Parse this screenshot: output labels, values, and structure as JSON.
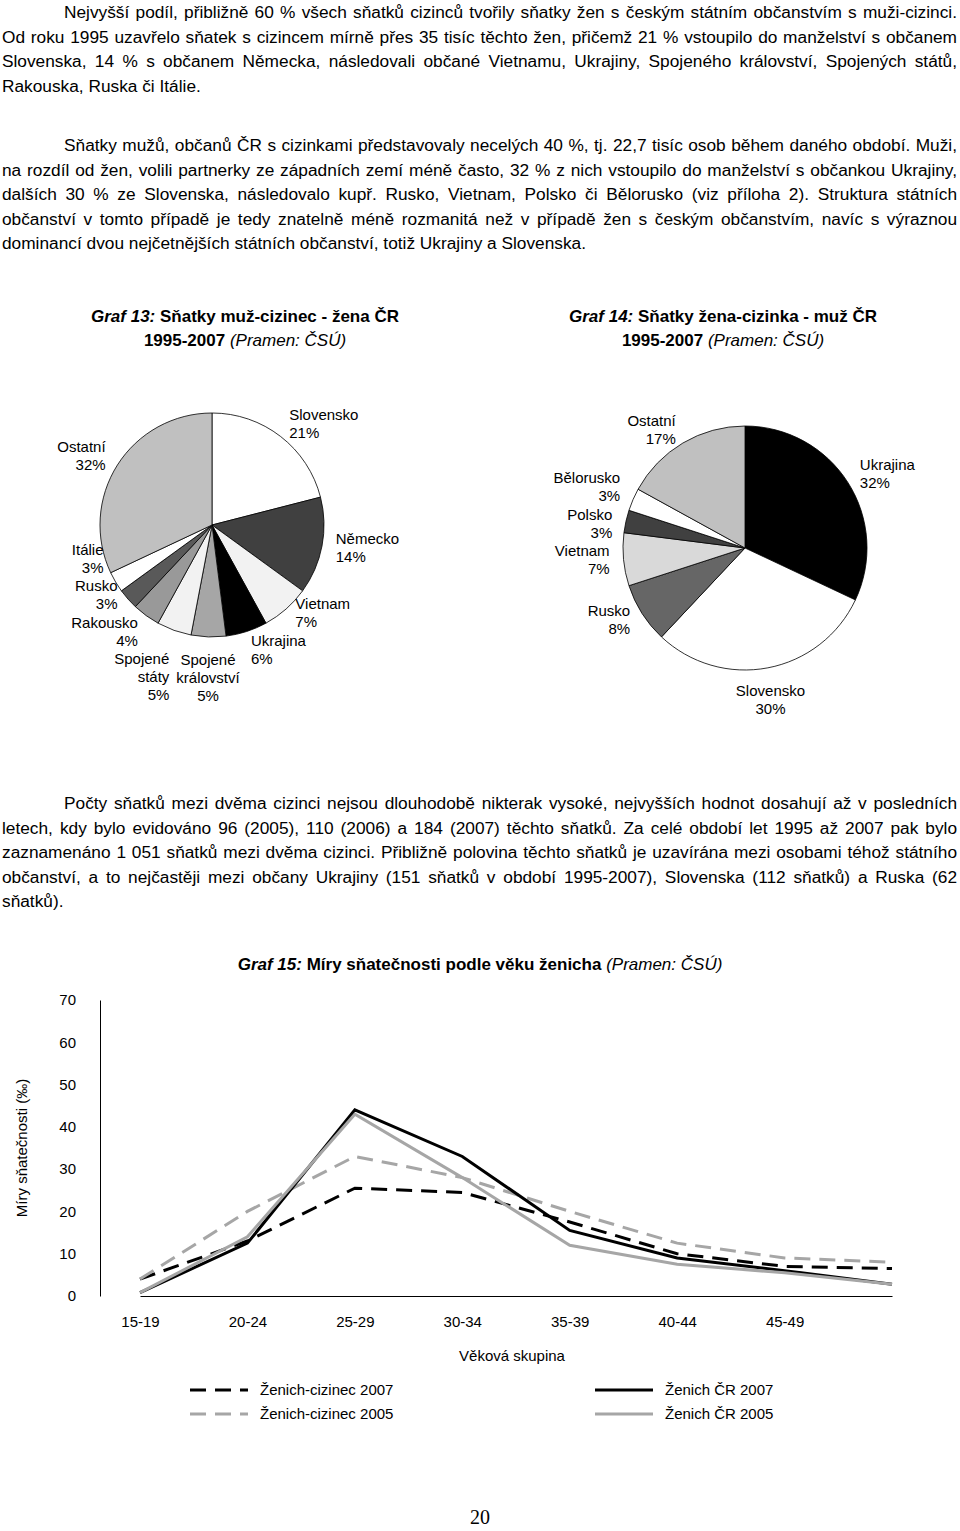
{
  "paragraphs": [
    "Nejvyšší podíl, přibližně 60 % všech sňatků cizinců tvořily sňatky žen s českým státním občanstvím s muži-cizinci. Od roku 1995 uzavřelo sňatek s cizincem mírně přes 35 tisíc těchto žen, přičemž 21 % vstoupilo do manželství s občanem Slovenska, 14 % s občanem Německa, následovali občané Vietnamu, Ukrajiny, Spojeného království, Spojených států, Rakouska, Ruska či Itálie.",
    "Sňatky mužů, občanů ČR s cizinkami představovaly necelých 40 %, tj. 22,7 tisíc osob během daného období. Muži, na rozdíl od žen, volili partnerky ze západních zemí méně často, 32 % z nich vstoupilo do manželství s občankou Ukrajiny, dalších 30 % ze Slovenska, následovalo kupř. Rusko, Vietnam, Polsko či Bělorusko (viz příloha 2). Struktura státních občanství v tomto případě je tedy znatelně méně rozmanitá než v případě žen s českým občanstvím, navíc s výraznou dominancí dvou nejčetnějších státních občanství, totiž Ukrajiny a Slovenska.",
    "Počty sňatků mezi dvěma cizinci nejsou dlouhodobě nikterak vysoké, nejvyšších hodnot dosahují až v posledních letech, kdy bylo evidováno 96 (2005), 110 (2006) a 184 (2007) těchto sňatků. Za celé období let 1995 až 2007 pak bylo zaznamenáno 1 051 sňatků mezi dvěma cizinci. Přibližně polovina těchto sňatků je uzavírána mezi osobami téhož státního občanství, a to nejčastěji mezi občany Ukrajiny (151 sňatků v období 1995-2007), Slovenska (112 sňatků) a Ruska (62 sňatků)."
  ],
  "page_number": "20",
  "chart_data": [
    {
      "type": "pie",
      "title": "Graf 13: Sňatky muž-cizinec - žena ČR 1995-2007 (Pramen: ČSÚ)",
      "categories": [
        "Slovensko",
        "Německo",
        "Vietnam",
        "Ukrajina",
        "Spojené království",
        "Spojené státy",
        "Rakousko",
        "Rusko",
        "Itálie",
        "Ostatní"
      ],
      "values": [
        21,
        14,
        7,
        6,
        5,
        5,
        4,
        3,
        3,
        32
      ],
      "value_labels": [
        "21%",
        "14%",
        "7%",
        "6%",
        "5%",
        "5%",
        "4%",
        "3%",
        "3%",
        "32%"
      ],
      "colors": [
        "#ffffff",
        "#404040",
        "#f2f2f2",
        "#000000",
        "#a6a6a6",
        "#f2f2f2",
        "#999999",
        "#595959",
        "#ffffff",
        "#c0c0c0"
      ],
      "data_labels": true
    },
    {
      "type": "pie",
      "title": "Graf 14: Sňatky žena-cizinka - muž ČR 1995-2007 (Pramen: ČSÚ)",
      "categories": [
        "Ukrajina",
        "Slovensko",
        "Rusko",
        "Vietnam",
        "Polsko",
        "Bělorusko",
        "Ostatní"
      ],
      "values": [
        32,
        30,
        8,
        7,
        3,
        3,
        17
      ],
      "value_labels": [
        "32%",
        "30%",
        "8%",
        "7%",
        "3%",
        "3%",
        "17%"
      ],
      "colors": [
        "#000000",
        "#ffffff",
        "#666666",
        "#d9d9d9",
        "#404040",
        "#ffffff",
        "#c0c0c0"
      ],
      "data_labels": true
    },
    {
      "type": "line",
      "title": "Graf 15: Míry sňatečnosti podle věku ženicha (Pramen: ČSÚ)",
      "x_label": "Věková skupina",
      "y_label": "Míry sňatečnosti (‰)",
      "categories": [
        "15-19",
        "20-24",
        "25-29",
        "30-34",
        "35-39",
        "40-44",
        "45-49",
        null
      ],
      "ylim": [
        0,
        70
      ],
      "yticks": [
        0,
        10,
        20,
        30,
        40,
        50,
        60,
        70
      ],
      "grid": false,
      "legend": "bottom",
      "series": [
        {
          "name": "Ženich-cizinec 2007",
          "color": "#000000",
          "line_style": "dashed",
          "values": [
            4,
            13,
            25.5,
            24.5,
            17.5,
            10,
            7,
            6.5
          ]
        },
        {
          "name": "Ženich-cizinec 2005",
          "color": "#a6a6a6",
          "line_style": "dashed",
          "values": [
            4,
            20,
            33,
            28,
            20,
            12.5,
            9,
            8
          ]
        },
        {
          "name": "Ženich ČR 2007",
          "color": "#000000",
          "line_style": "solid",
          "values": [
            0.8,
            12.5,
            44,
            33,
            15.5,
            9,
            6,
            2.8
          ]
        },
        {
          "name": "Ženich ČR 2005",
          "color": "#a6a6a6",
          "line_style": "solid",
          "values": [
            0.8,
            14,
            43,
            28,
            12,
            7.5,
            5.5,
            2.8
          ]
        }
      ]
    }
  ]
}
